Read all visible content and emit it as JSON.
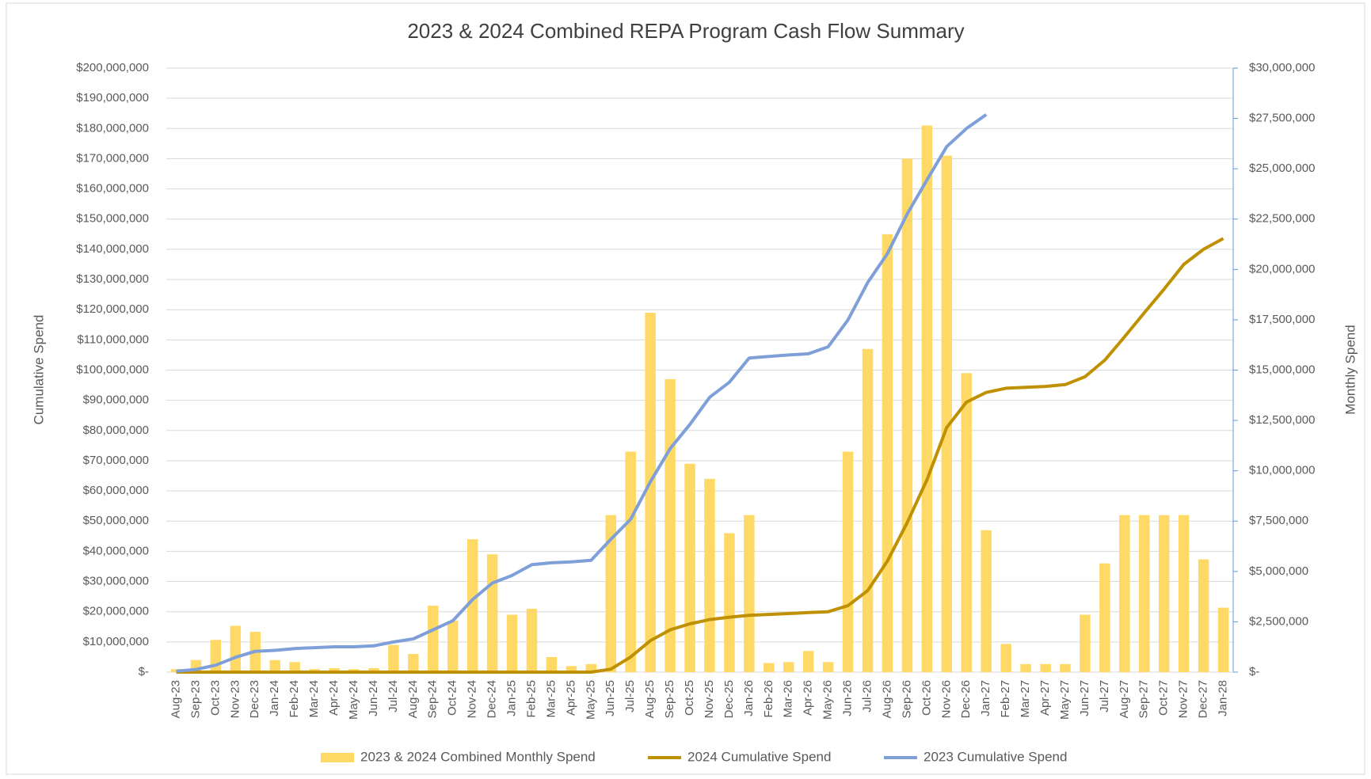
{
  "chart_data": {
    "type": "bar",
    "title": "2023 & 2024 Combined REPA Program Cash Flow Summary",
    "y_label": "Cumulative Spend",
    "y2_label": "Monthly Spend",
    "grid": true,
    "legend": "bottom",
    "categories": [
      "Aug-23",
      "Sep-23",
      "Oct-23",
      "Nov-23",
      "Dec-23",
      "Jan-24",
      "Feb-24",
      "Mar-24",
      "Apr-24",
      "May-24",
      "Jun-24",
      "Jul-24",
      "Aug-24",
      "Sep-24",
      "Oct-24",
      "Nov-24",
      "Dec-24",
      "Jan-25",
      "Feb-25",
      "Mar-25",
      "Apr-25",
      "May-25",
      "Jun-25",
      "Jul-25",
      "Aug-25",
      "Sep-25",
      "Oct-25",
      "Nov-25",
      "Dec-25",
      "Jan-26",
      "Feb-26",
      "Mar-26",
      "Apr-26",
      "May-26",
      "Jun-26",
      "Jul-26",
      "Aug-26",
      "Sep-26",
      "Oct-26",
      "Nov-26",
      "Dec-26",
      "Jan-27",
      "Feb-27",
      "Mar-27",
      "Apr-27",
      "May-27",
      "Jun-27",
      "Jul-27",
      "Aug-27",
      "Sep-27",
      "Oct-27",
      "Nov-27",
      "Dec-27",
      "Jan-28"
    ],
    "ylim": [
      0,
      200000000
    ],
    "yticks": [
      {
        "value": 0,
        "label": "$-"
      },
      {
        "value": 10000000,
        "label": "$10,000,000"
      },
      {
        "value": 20000000,
        "label": "$20,000,000"
      },
      {
        "value": 30000000,
        "label": "$30,000,000"
      },
      {
        "value": 40000000,
        "label": "$40,000,000"
      },
      {
        "value": 50000000,
        "label": "$50,000,000"
      },
      {
        "value": 60000000,
        "label": "$60,000,000"
      },
      {
        "value": 70000000,
        "label": "$70,000,000"
      },
      {
        "value": 80000000,
        "label": "$80,000,000"
      },
      {
        "value": 90000000,
        "label": "$90,000,000"
      },
      {
        "value": 100000000,
        "label": "$100,000,000"
      },
      {
        "value": 110000000,
        "label": "$110,000,000"
      },
      {
        "value": 120000000,
        "label": "$120,000,000"
      },
      {
        "value": 130000000,
        "label": "$130,000,000"
      },
      {
        "value": 140000000,
        "label": "$140,000,000"
      },
      {
        "value": 150000000,
        "label": "$150,000,000"
      },
      {
        "value": 160000000,
        "label": "$160,000,000"
      },
      {
        "value": 170000000,
        "label": "$170,000,000"
      },
      {
        "value": 180000000,
        "label": "$180,000,000"
      },
      {
        "value": 190000000,
        "label": "$190,000,000"
      },
      {
        "value": 200000000,
        "label": "$200,000,000"
      }
    ],
    "y2lim": [
      0,
      30000000
    ],
    "y2ticks": [
      {
        "value": 0,
        "label": "$-"
      },
      {
        "value": 2500000,
        "label": "$2,500,000"
      },
      {
        "value": 5000000,
        "label": "$5,000,000"
      },
      {
        "value": 7500000,
        "label": "$7,500,000"
      },
      {
        "value": 10000000,
        "label": "$10,000,000"
      },
      {
        "value": 12500000,
        "label": "$12,500,000"
      },
      {
        "value": 15000000,
        "label": "$15,000,000"
      },
      {
        "value": 17500000,
        "label": "$17,500,000"
      },
      {
        "value": 20000000,
        "label": "$20,000,000"
      },
      {
        "value": 22500000,
        "label": "$22,500,000"
      },
      {
        "value": 25000000,
        "label": "$25,000,000"
      },
      {
        "value": 27500000,
        "label": "$27,500,000"
      },
      {
        "value": 30000000,
        "label": "$30,000,000"
      }
    ],
    "series": [
      {
        "name": "2023 & 2024 Combined Monthly Spend",
        "type": "bar",
        "axis": "y2",
        "color": "#ffd966",
        "values": [
          150000,
          600000,
          1600000,
          2300000,
          2000000,
          600000,
          500000,
          150000,
          200000,
          150000,
          200000,
          1350000,
          900000,
          3300000,
          2550000,
          6600000,
          5850000,
          2850000,
          3150000,
          750000,
          300000,
          400000,
          7800000,
          10950000,
          17850000,
          14550000,
          10350000,
          9600000,
          6900000,
          7800000,
          450000,
          500000,
          1050000,
          500000,
          10950000,
          16050000,
          21750000,
          25500000,
          27150000,
          25650000,
          14850000,
          7050000,
          1400000,
          400000,
          400000,
          400000,
          2850000,
          5400000,
          7800000,
          7800000,
          7800000,
          7800000,
          5600000,
          3200000
        ]
      },
      {
        "name": "2024 Cumulative Spend",
        "type": "line",
        "axis": "y",
        "color": "#bf9000",
        "values": [
          0,
          0,
          0,
          0,
          0,
          0,
          0,
          0,
          0,
          0,
          0,
          0,
          0,
          0,
          0,
          0,
          0,
          0,
          0,
          0,
          0,
          0,
          1000000,
          5000000,
          10400000,
          14000000,
          16000000,
          17400000,
          18200000,
          18800000,
          19100000,
          19400000,
          19700000,
          20000000,
          22000000,
          27000000,
          36800000,
          49500000,
          63700000,
          81000000,
          89400000,
          92600000,
          94000000,
          94300000,
          94600000,
          95200000,
          97800000,
          103300000,
          111000000,
          119000000,
          126800000,
          135000000,
          140000000,
          143600000
        ]
      },
      {
        "name": "2023 Cumulative Spend",
        "type": "line",
        "axis": "y",
        "color": "#7f9fd8",
        "values": [
          300000,
          900000,
          2300000,
          4900000,
          6900000,
          7200000,
          7800000,
          8100000,
          8400000,
          8400000,
          8700000,
          10000000,
          11000000,
          14000000,
          17000000,
          24000000,
          29500000,
          32000000,
          35600000,
          36200000,
          36500000,
          37000000,
          44000000,
          50600000,
          63000000,
          74000000,
          82000000,
          91000000,
          96000000,
          104000000,
          104500000,
          105000000,
          105400000,
          107700000,
          116600000,
          129000000,
          138600000,
          151700000,
          163000000,
          174000000,
          180000000,
          184600000,
          null,
          null,
          null,
          null,
          null,
          null,
          null,
          null,
          null,
          null,
          null,
          null
        ]
      }
    ]
  }
}
